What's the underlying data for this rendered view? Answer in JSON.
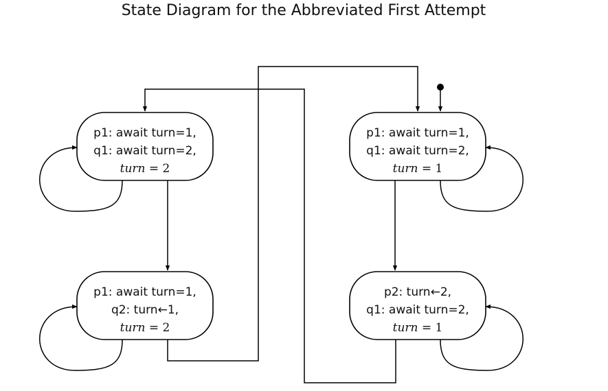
{
  "title": "State Diagram for the Abbreviated First Attempt",
  "states": [
    {
      "id": "s1",
      "line1": "p1: await turn=1,",
      "line2": "q1: await turn=2,",
      "var": "turn",
      "eq": " = ",
      "val": "2",
      "initial": false
    },
    {
      "id": "s2",
      "line1": "p1: await turn=1,",
      "line2": "q1: await turn=2,",
      "var": "turn",
      "eq": " = ",
      "val": "1",
      "initial": true
    },
    {
      "id": "s3",
      "line1": "p1: await turn=1,",
      "line2": "q2: turn←1,",
      "var": "turn",
      "eq": " = ",
      "val": "2",
      "initial": false
    },
    {
      "id": "s4",
      "line1": "p2: turn←2,",
      "line2": "q1: await turn=2,",
      "var": "turn",
      "eq": " = ",
      "val": "1",
      "initial": false
    }
  ],
  "transitions": [
    {
      "from": "s1",
      "to": "s1"
    },
    {
      "from": "s1",
      "to": "s3"
    },
    {
      "from": "s3",
      "to": "s3"
    },
    {
      "from": "s3",
      "to": "s2"
    },
    {
      "from": "s2",
      "to": "s2"
    },
    {
      "from": "s2",
      "to": "s4"
    },
    {
      "from": "s4",
      "to": "s4"
    },
    {
      "from": "s4",
      "to": "s1"
    }
  ]
}
